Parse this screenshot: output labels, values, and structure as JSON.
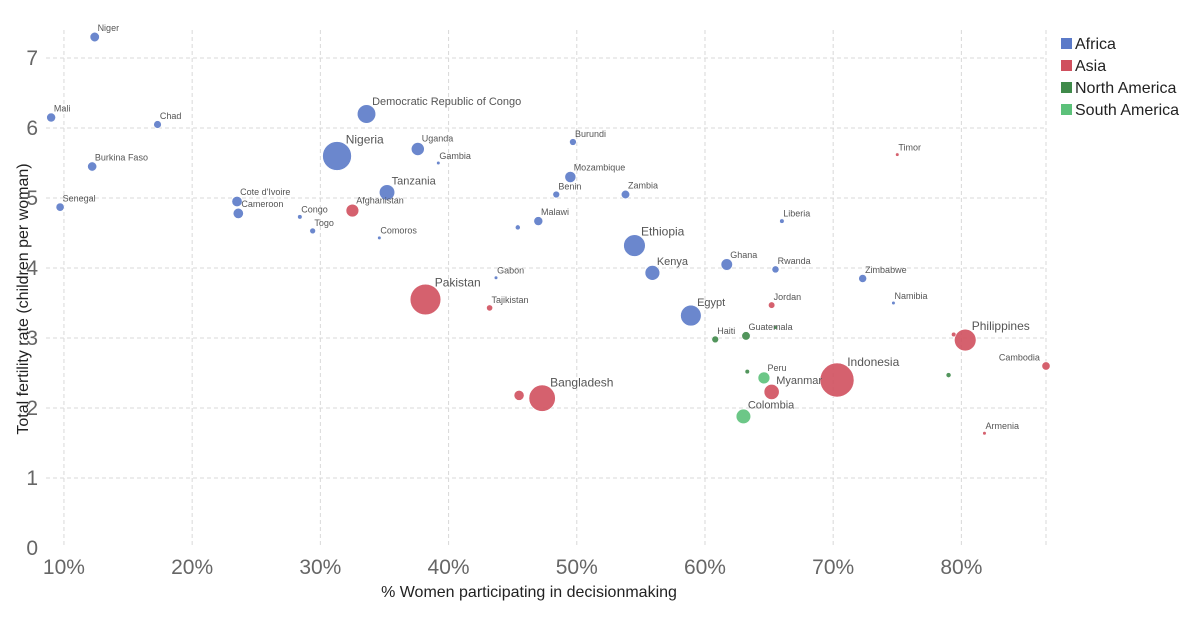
{
  "chart_data": {
    "type": "scatter",
    "title": "",
    "xlabel": "% Women participating in decisionmaking",
    "ylabel": "Total fertility rate (children per woman)",
    "xlim": [
      0.086,
      0.866
    ],
    "ylim": [
      0,
      7.4
    ],
    "x_ticks": [
      0.1,
      0.2,
      0.3,
      0.4,
      0.5,
      0.6,
      0.7,
      0.8
    ],
    "x_tick_labels": [
      "10%",
      "20%",
      "30%",
      "40%",
      "50%",
      "60%",
      "70%",
      "80%"
    ],
    "y_ticks": [
      0,
      1,
      2,
      3,
      4,
      5,
      6,
      7
    ],
    "y_tick_labels": [
      "0",
      "1",
      "2",
      "3",
      "4",
      "5",
      "6",
      "7"
    ],
    "grid": true,
    "legend_position": "top-right",
    "size_encoding": "bubble area represents population",
    "series": [
      {
        "name": "Africa",
        "color": "#5b7ac8"
      },
      {
        "name": "Asia",
        "color": "#d0505e"
      },
      {
        "name": "North America",
        "color": "#3f8a4a"
      },
      {
        "name": "South America",
        "color": "#5cc17a"
      }
    ],
    "points": [
      {
        "label": "Niger",
        "series": "Africa",
        "x": 0.124,
        "y": 7.3,
        "size": 21
      },
      {
        "label": "Mali",
        "series": "Africa",
        "x": 0.09,
        "y": 6.15,
        "size": 19
      },
      {
        "label": "Chad",
        "series": "Africa",
        "x": 0.173,
        "y": 6.05,
        "size": 14
      },
      {
        "label": "Democratic Republic of Congo",
        "series": "Africa",
        "x": 0.336,
        "y": 6.2,
        "size": 80
      },
      {
        "label": "Burundi",
        "series": "Africa",
        "x": 0.497,
        "y": 5.8,
        "size": 11
      },
      {
        "label": "Uganda",
        "series": "Africa",
        "x": 0.376,
        "y": 5.7,
        "size": 40
      },
      {
        "label": "Nigeria",
        "series": "Africa",
        "x": 0.313,
        "y": 5.6,
        "size": 195
      },
      {
        "label": "Gambia",
        "series": "Africa",
        "x": 0.392,
        "y": 5.5,
        "size": 2
      },
      {
        "label": "Burkina Faso",
        "series": "Africa",
        "x": 0.122,
        "y": 5.45,
        "size": 20
      },
      {
        "label": "Mozambique",
        "series": "Africa",
        "x": 0.495,
        "y": 5.3,
        "size": 29
      },
      {
        "label": "Tanzania",
        "series": "Africa",
        "x": 0.352,
        "y": 5.08,
        "size": 56
      },
      {
        "label": "Benin",
        "series": "Africa",
        "x": 0.484,
        "y": 5.05,
        "size": 11
      },
      {
        "label": "Zambia",
        "series": "Africa",
        "x": 0.538,
        "y": 5.05,
        "size": 17
      },
      {
        "label": "Cote d'Ivoire",
        "series": "Africa",
        "x": 0.235,
        "y": 4.95,
        "size": 25
      },
      {
        "label": "Cameroon",
        "series": "Africa",
        "x": 0.236,
        "y": 4.78,
        "size": 25
      },
      {
        "label": "Senegal",
        "series": "Africa",
        "x": 0.097,
        "y": 4.87,
        "size": 16
      },
      {
        "label": "Congo",
        "series": "Africa",
        "x": 0.284,
        "y": 4.73,
        "size": 5
      },
      {
        "label": "Afghanistan",
        "series": "Asia",
        "x": 0.325,
        "y": 4.82,
        "size": 38
      },
      {
        "label": "Togo",
        "series": "Africa",
        "x": 0.294,
        "y": 4.53,
        "size": 8
      },
      {
        "label": "Comoros",
        "series": "Africa",
        "x": 0.346,
        "y": 4.43,
        "size": 1
      },
      {
        "label": "",
        "series": "Africa",
        "x": 0.454,
        "y": 4.58,
        "size": 6
      },
      {
        "label": "Malawi",
        "series": "Africa",
        "x": 0.47,
        "y": 4.67,
        "size": 19
      },
      {
        "label": "Liberia",
        "series": "Africa",
        "x": 0.66,
        "y": 4.67,
        "size": 5
      },
      {
        "label": "Ethiopia",
        "series": "Africa",
        "x": 0.545,
        "y": 4.32,
        "size": 110
      },
      {
        "label": "Ghana",
        "series": "Africa",
        "x": 0.617,
        "y": 4.05,
        "size": 31
      },
      {
        "label": "Rwanda",
        "series": "Africa",
        "x": 0.655,
        "y": 3.98,
        "size": 12
      },
      {
        "label": "Kenya",
        "series": "Africa",
        "x": 0.559,
        "y": 3.93,
        "size": 51
      },
      {
        "label": "Zimbabwe",
        "series": "Africa",
        "x": 0.723,
        "y": 3.85,
        "size": 15
      },
      {
        "label": "Gabon",
        "series": "Africa",
        "x": 0.437,
        "y": 3.86,
        "size": 2
      },
      {
        "label": "Pakistan",
        "series": "Asia",
        "x": 0.382,
        "y": 3.55,
        "size": 220
      },
      {
        "label": "Namibia",
        "series": "Africa",
        "x": 0.747,
        "y": 3.5,
        "size": 2
      },
      {
        "label": "Jordan",
        "series": "Asia",
        "x": 0.652,
        "y": 3.47,
        "size": 10
      },
      {
        "label": "Tajikistan",
        "series": "Asia",
        "x": 0.432,
        "y": 3.43,
        "size": 9
      },
      {
        "label": "Egypt",
        "series": "Africa",
        "x": 0.589,
        "y": 3.32,
        "size": 100
      },
      {
        "label": "Philippines",
        "series": "Asia",
        "x": 0.803,
        "y": 2.97,
        "size": 110
      },
      {
        "label": "",
        "series": "Asia",
        "x": 0.794,
        "y": 3.05,
        "size": 5
      },
      {
        "label": "Haiti",
        "series": "North America",
        "x": 0.608,
        "y": 2.98,
        "size": 11
      },
      {
        "label": "Guatemala",
        "series": "North America",
        "x": 0.632,
        "y": 3.03,
        "size": 17
      },
      {
        "label": "",
        "series": "North America",
        "x": 0.655,
        "y": 3.15,
        "size": 1
      },
      {
        "label": "Timor",
        "series": "Asia",
        "x": 0.75,
        "y": 5.62,
        "size": 1
      },
      {
        "label": "Indonesia",
        "series": "Asia",
        "x": 0.703,
        "y": 2.4,
        "size": 270
      },
      {
        "label": "Cambodia",
        "series": "Asia",
        "x": 0.866,
        "y": 2.6,
        "size": 16
      },
      {
        "label": "",
        "series": "North America",
        "x": 0.79,
        "y": 2.47,
        "size": 6
      },
      {
        "label": "Peru",
        "series": "South America",
        "x": 0.646,
        "y": 2.43,
        "size": 33
      },
      {
        "label": "",
        "series": "North America",
        "x": 0.633,
        "y": 2.52,
        "size": 5
      },
      {
        "label": "Myanmar",
        "series": "Asia",
        "x": 0.652,
        "y": 2.23,
        "size": 54
      },
      {
        "label": "Bangladesh",
        "series": "Asia",
        "x": 0.473,
        "y": 2.14,
        "size": 163
      },
      {
        "label": "",
        "series": "Asia",
        "x": 0.455,
        "y": 2.18,
        "size": 24
      },
      {
        "label": "Colombia",
        "series": "South America",
        "x": 0.63,
        "y": 1.88,
        "size": 50
      },
      {
        "label": "Armenia",
        "series": "Asia",
        "x": 0.818,
        "y": 1.64,
        "size": 3
      }
    ]
  }
}
